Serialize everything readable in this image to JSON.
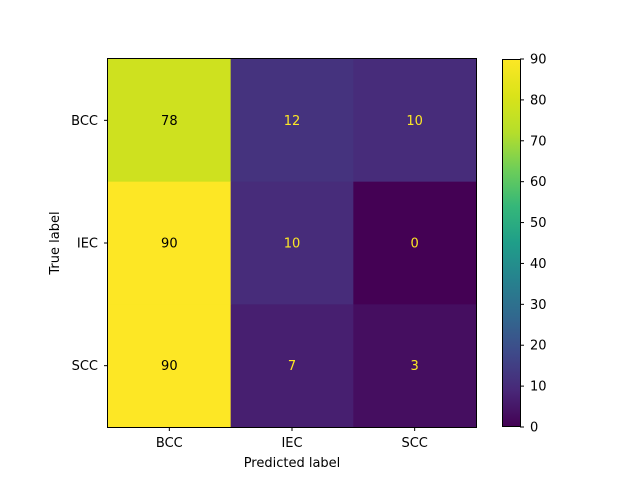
{
  "chart_data": {
    "type": "heatmap",
    "title": "",
    "xlabel": "Predicted label",
    "ylabel": "True label",
    "x_categories": [
      "BCC",
      "IEC",
      "SCC"
    ],
    "y_categories": [
      "BCC",
      "IEC",
      "SCC"
    ],
    "values": [
      [
        78,
        12,
        10
      ],
      [
        90,
        10,
        0
      ],
      [
        90,
        7,
        3
      ]
    ],
    "colormap": "viridis",
    "vmin": 0,
    "vmax": 90,
    "colorbar_ticks": [
      0,
      10,
      20,
      30,
      40,
      50,
      60,
      70,
      80,
      90
    ],
    "text_color_dark": "#000000",
    "text_color_light": "#fde725",
    "grid": false
  }
}
